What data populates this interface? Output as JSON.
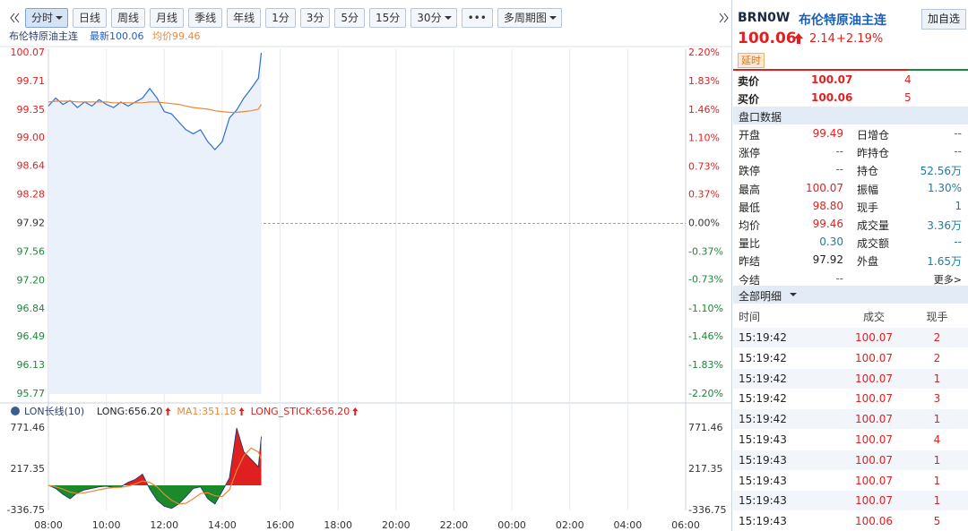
{
  "toolbar": {
    "buttons": [
      "分时",
      "日线",
      "周线",
      "月线",
      "季线",
      "年线",
      "1分",
      "3分",
      "5分",
      "15分",
      "30分",
      "•••",
      "多周期图"
    ]
  },
  "chart_header": {
    "name": "布伦特原油主连",
    "latest": "最新100.06",
    "avg": "均价99.46"
  },
  "chart_data": [
    {
      "type": "line",
      "baseline": 97.92,
      "x": [
        8,
        8.25,
        8.5,
        8.75,
        9,
        9.25,
        9.5,
        9.75,
        10,
        10.25,
        10.5,
        10.75,
        11,
        11.25,
        11.5,
        11.75,
        12,
        12.25,
        12.5,
        12.75,
        13,
        13.25,
        13.5,
        13.75,
        14,
        14.25,
        14.5,
        14.75,
        15,
        15.25,
        15.35
      ],
      "series": [
        {
          "name": "最新",
          "color": "#2f6fd0",
          "values": [
            99.4,
            99.5,
            99.42,
            99.47,
            99.38,
            99.45,
            99.4,
            99.48,
            99.42,
            99.38,
            99.45,
            99.4,
            99.45,
            99.5,
            99.62,
            99.5,
            99.33,
            99.3,
            99.2,
            99.1,
            99.05,
            99.1,
            98.95,
            98.85,
            98.95,
            99.25,
            99.35,
            99.5,
            99.62,
            99.75,
            100.07
          ]
        },
        {
          "name": "均价",
          "color": "#e8883a",
          "values": [
            99.45,
            99.46,
            99.46,
            99.46,
            99.45,
            99.45,
            99.45,
            99.45,
            99.45,
            99.44,
            99.44,
            99.44,
            99.44,
            99.44,
            99.45,
            99.45,
            99.44,
            99.43,
            99.42,
            99.4,
            99.38,
            99.37,
            99.36,
            99.34,
            99.33,
            99.32,
            99.32,
            99.33,
            99.34,
            99.36,
            99.42
          ]
        }
      ],
      "xlim": [
        8,
        30
      ],
      "ylim": [
        95.77,
        100.07
      ],
      "yticks": [
        100.07,
        99.71,
        99.35,
        {
          "value": 99,
          "label": "99.00"
        },
        98.64,
        98.28,
        97.92,
        97.56,
        {
          "value": 97.2,
          "label": "97.20"
        },
        96.84,
        96.49,
        96.13,
        95.77
      ],
      "y2lim": [
        -2.2,
        2.2
      ],
      "y2ticks": [
        {
          "value": 2.2,
          "label": "2.20%"
        },
        {
          "value": 1.83,
          "label": "1.83%"
        },
        {
          "value": 1.46,
          "label": "1.46%"
        },
        {
          "value": 1.1,
          "label": "1.10%"
        },
        {
          "value": 0.73,
          "label": "0.73%"
        },
        {
          "value": 0.37,
          "label": "0.37%"
        },
        {
          "value": 0,
          "label": "0.00%"
        },
        {
          "value": -0.37,
          "label": "-0.37%"
        },
        {
          "value": -0.73,
          "label": "-0.73%"
        },
        {
          "value": -1.1,
          "label": "-1.10%"
        },
        {
          "value": -1.46,
          "label": "-1.46%"
        },
        {
          "value": -1.83,
          "label": "-1.83%"
        },
        {
          "value": -2.2,
          "label": "-2.20%"
        }
      ]
    },
    {
      "type": "area",
      "title": "LON长线(10)",
      "x": [
        8,
        8.25,
        8.5,
        8.75,
        9,
        9.25,
        9.5,
        9.75,
        10,
        10.25,
        10.5,
        10.75,
        11,
        11.25,
        11.5,
        11.75,
        12,
        12.25,
        12.5,
        12.75,
        13,
        13.25,
        13.5,
        13.75,
        14,
        14.25,
        14.5,
        14.75,
        15,
        15.25,
        15.35
      ],
      "series": [
        {
          "name": "LONG:656.20",
          "color": "#1f3b66",
          "values": [
            0,
            -40,
            -120,
            -180,
            -100,
            -60,
            -40,
            -20,
            -10,
            -30,
            -20,
            40,
            80,
            150,
            -50,
            -200,
            -280,
            -310,
            -250,
            -150,
            -40,
            -20,
            -180,
            -250,
            -80,
            100,
            771,
            450,
            350,
            250,
            656.2
          ]
        },
        {
          "name": "MA1:351.18",
          "color": "#e8883a",
          "values": [
            0,
            -20,
            -50,
            -90,
            -110,
            -100,
            -80,
            -60,
            -40,
            -30,
            -25,
            -10,
            20,
            60,
            40,
            -20,
            -120,
            -200,
            -250,
            -240,
            -180,
            -110,
            -100,
            -140,
            -150,
            -60,
            200,
            400,
            500,
            450,
            351.18
          ]
        },
        {
          "name": "LONG_STICK:656.20",
          "color": "#e02020",
          "values": [
            0,
            -40,
            -120,
            -180,
            -100,
            -60,
            -40,
            -20,
            -10,
            -30,
            -20,
            40,
            80,
            150,
            -50,
            -200,
            -280,
            -310,
            -250,
            -150,
            -40,
            -20,
            -180,
            -250,
            -80,
            100,
            771,
            450,
            350,
            250,
            656.2
          ]
        }
      ],
      "xlim": [
        8,
        30
      ],
      "xticks": [
        {
          "value": 8,
          "label": "08:00"
        },
        {
          "value": 10,
          "label": "10:00"
        },
        {
          "value": 12,
          "label": "12:00"
        },
        {
          "value": 14,
          "label": "14:00"
        },
        {
          "value": 16,
          "label": "16:00"
        },
        {
          "value": 18,
          "label": "18:00"
        },
        {
          "value": 20,
          "label": "20:00"
        },
        {
          "value": 22,
          "label": "22:00"
        },
        {
          "value": 24,
          "label": "00:00"
        },
        {
          "value": 26,
          "label": "02:00"
        },
        {
          "value": 28,
          "label": "04:00"
        },
        {
          "value": 30,
          "label": "06:00"
        }
      ],
      "ylim": [
        -336.75,
        771.46
      ],
      "yticks": [
        771.46,
        217.35,
        -336.75
      ]
    }
  ],
  "quote": {
    "symbol": "BRN0W",
    "name": "布伦特原油主连",
    "button": "加自选",
    "price": "100.06",
    "change": "2.14",
    "pct": "+2.19%",
    "delay": "延时",
    "book": [
      [
        "卖价",
        "100.07",
        "4"
      ],
      [
        "买价",
        "100.06",
        "5"
      ]
    ]
  },
  "stats": {
    "title": "盘口数据",
    "rows": [
      [
        "开盘",
        "99.49",
        "日增仓",
        "--"
      ],
      [
        "涨停",
        "--",
        "昨持仓",
        "--"
      ],
      [
        "跌停",
        "--",
        "持仓",
        "52.56万"
      ],
      [
        "最高",
        "100.07",
        "振幅",
        "1.30%"
      ],
      [
        "最低",
        "98.80",
        "现手",
        "1"
      ],
      [
        "均价",
        "99.46",
        "成交量",
        "3.36万"
      ],
      [
        "量比",
        "0.30",
        "成交额",
        "--"
      ],
      [
        "昨结",
        "97.92",
        "外盘",
        "1.65万"
      ],
      [
        "今结",
        "--"
      ]
    ],
    "more": "更多>"
  },
  "trades": {
    "title": "全部明细",
    "columns": [
      "时间",
      "成交",
      "现手"
    ],
    "rows": [
      [
        "15:19:42",
        "100.07",
        "2"
      ],
      [
        "15:19:42",
        "100.07",
        "2"
      ],
      [
        "15:19:42",
        "100.07",
        "1"
      ],
      [
        "15:19:42",
        "100.07",
        "3"
      ],
      [
        "15:19:42",
        "100.07",
        "1"
      ],
      [
        "15:19:43",
        "100.07",
        "4"
      ],
      [
        "15:19:43",
        "100.07",
        "1"
      ],
      [
        "15:19:43",
        "100.07",
        "1"
      ],
      [
        "15:19:43",
        "100.07",
        "1"
      ],
      [
        "15:19:43",
        "100.06",
        "5"
      ]
    ]
  }
}
